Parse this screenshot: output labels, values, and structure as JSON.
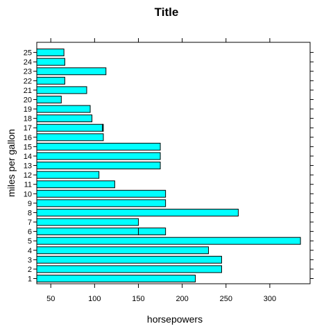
{
  "chart_data": {
    "type": "bar",
    "orientation": "horizontal",
    "title": "Title",
    "xlabel": "horsepowers",
    "ylabel": "miles per gallon",
    "categories": [
      "1",
      "2",
      "3",
      "4",
      "5",
      "6",
      "7",
      "8",
      "9",
      "10",
      "11",
      "12",
      "13",
      "14",
      "15",
      "16",
      "17",
      "18",
      "19",
      "20",
      "21",
      "22",
      "23",
      "24",
      "25"
    ],
    "series": [
      {
        "bars": [
          [
            [
              0,
              215
            ]
          ],
          [
            [
              0,
              245
            ]
          ],
          [
            [
              0,
              245
            ]
          ],
          [
            [
              0,
              230
            ]
          ],
          [
            [
              0,
              335
            ]
          ],
          [
            [
              0,
              150
            ],
            [
              150,
              181
            ]
          ],
          [
            [
              0,
              150
            ]
          ],
          [
            [
              0,
              264
            ]
          ],
          [
            [
              0,
              181
            ]
          ],
          [
            [
              0,
              181
            ]
          ],
          [
            [
              0,
              123
            ]
          ],
          [
            [
              0,
              105
            ]
          ],
          [
            [
              0,
              175
            ]
          ],
          [
            [
              0,
              175
            ]
          ],
          [
            [
              0,
              175
            ]
          ],
          [
            [
              0,
              110
            ]
          ],
          [
            [
              0,
              109
            ],
            [
              109,
              110
            ]
          ],
          [
            [
              0,
              97
            ]
          ],
          [
            [
              0,
              95
            ]
          ],
          [
            [
              0,
              62
            ]
          ],
          [
            [
              0,
              91
            ]
          ],
          [
            [
              0,
              66
            ]
          ],
          [
            [
              0,
              113
            ]
          ],
          [
            [
              0,
              66
            ]
          ],
          [
            [
              0,
              65
            ]
          ]
        ]
      }
    ],
    "xlim": [
      34,
      346
    ],
    "xticks": [
      50,
      100,
      150,
      200,
      250,
      300
    ],
    "bar_fill": "#00ffff",
    "bar_stroke": "#000000",
    "grid": false,
    "legend": "none"
  }
}
